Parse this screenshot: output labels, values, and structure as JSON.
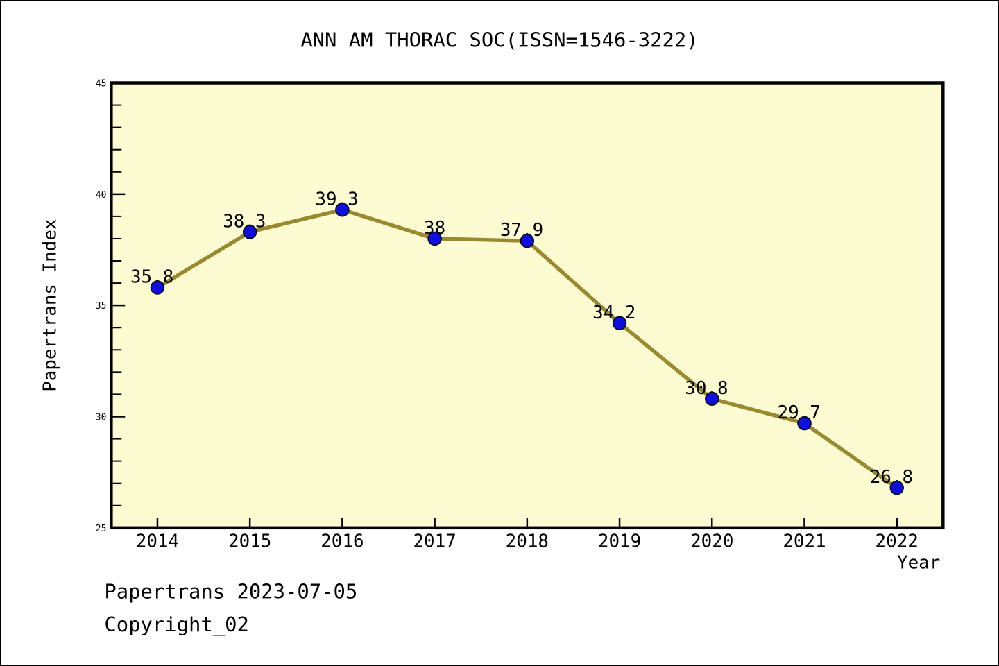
{
  "title": "ANN AM THORAC SOC(ISSN=1546-3222)",
  "footer": {
    "date_line": "Papertrans 2023-07-05",
    "copyright_line": "Copyright_02"
  },
  "chart_data": {
    "type": "line",
    "title": "ANN AM THORAC SOC(ISSN=1546-3222)",
    "xlabel": "Year",
    "ylabel": "Papertrans Index",
    "x": [
      2014,
      2015,
      2016,
      2017,
      2018,
      2019,
      2020,
      2021,
      2022
    ],
    "values": [
      35.8,
      38.3,
      39.3,
      38,
      37.9,
      34.2,
      30.8,
      29.7,
      26.8
    ],
    "point_labels": [
      "35.8",
      "38.3",
      "39.3",
      "38",
      "37.9",
      "34.2",
      "30.8",
      "29.7",
      "26.8"
    ],
    "series_name": "Papertrans Index",
    "xlim": [
      2013.5,
      2022.5
    ],
    "ylim": [
      25,
      45
    ],
    "x_ticks": [
      2014,
      2015,
      2016,
      2017,
      2018,
      2019,
      2020,
      2021,
      2022
    ],
    "y_major_ticks": [
      25,
      30,
      35,
      40,
      45
    ],
    "y_minor_step": 1,
    "grid": false,
    "legend": "none",
    "colors": {
      "plot_bg": "#FCFBD2",
      "line": "#998A2F",
      "marker_fill": "#0F0FDC",
      "marker_edge": "#000000",
      "frame": "#000000",
      "text": "#000000",
      "page_bg": "#FFFFFF"
    }
  }
}
